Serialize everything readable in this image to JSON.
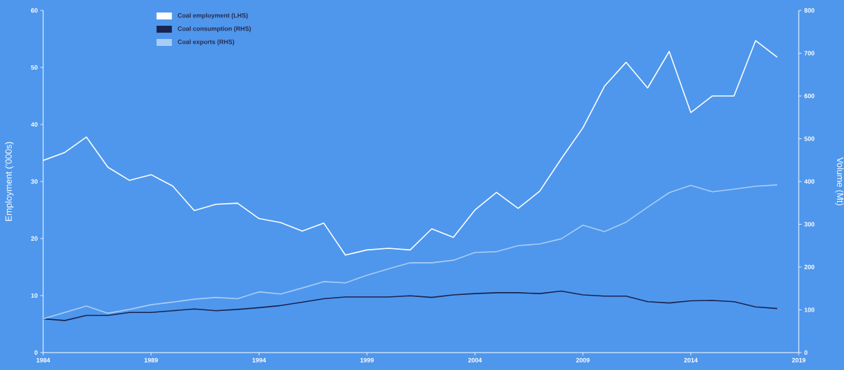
{
  "chart_data": {
    "type": "line",
    "x": [
      1984,
      1985,
      1986,
      1987,
      1988,
      1989,
      1990,
      1991,
      1992,
      1993,
      1994,
      1995,
      1996,
      1997,
      1998,
      1999,
      2000,
      2001,
      2002,
      2003,
      2004,
      2005,
      2006,
      2007,
      2008,
      2009,
      2010,
      2011,
      2012,
      2013,
      2014,
      2015,
      2016,
      2017,
      2018
    ],
    "series": [
      {
        "name": "Coal employment (LHS)",
        "color": "#ffffff",
        "axis": "y",
        "values": [
          33.7,
          35.1,
          37.8,
          32.5,
          30.2,
          31.2,
          29.2,
          24.9,
          26.0,
          26.2,
          23.5,
          22.8,
          21.3,
          22.7,
          17.1,
          18.0,
          18.3,
          18.0,
          21.7,
          20.2,
          25.0,
          28.1,
          25.3,
          28.3,
          34.0,
          39.4,
          46.7,
          50.9,
          46.4,
          52.8,
          42.1,
          45.0,
          45.0,
          54.7,
          51.8
        ]
      },
      {
        "name": "Coal consumption (RHS)",
        "color": "#1a2350",
        "axis": "y2",
        "values": [
          79,
          75,
          87,
          87,
          94,
          94,
          98,
          102,
          98,
          101,
          105,
          110,
          118,
          126,
          130,
          130,
          130,
          133,
          129,
          135,
          138,
          140,
          140,
          138,
          144,
          135,
          132,
          132,
          119,
          116,
          121,
          122,
          119,
          107,
          103
        ]
      },
      {
        "name": "Coal exports (RHS)",
        "color": "#a9cdf5",
        "axis": "y2",
        "values": [
          79,
          94,
          109,
          92,
          101,
          112,
          118,
          125,
          129,
          126,
          142,
          137,
          151,
          166,
          163,
          181,
          196,
          210,
          210,
          216,
          234,
          236,
          250,
          254,
          266,
          298,
          283,
          305,
          340,
          374,
          391,
          376,
          382,
          389,
          392
        ]
      }
    ],
    "ylabel": "Employment  (’000s)",
    "y2label": "Volume  (Mt)",
    "xlim": [
      1984,
      2019
    ],
    "xticks": [
      1984,
      1989,
      1994,
      1999,
      2004,
      2009,
      2014,
      2019
    ],
    "ylim": [
      0,
      60
    ],
    "yticks": [
      0,
      10,
      20,
      30,
      40,
      50,
      60
    ],
    "y2lim": [
      0,
      800
    ],
    "y2ticks": [
      0,
      100,
      200,
      300,
      400,
      500,
      600,
      700,
      800
    ],
    "legend": "top left",
    "grid": false,
    "marker": "none",
    "line_style": "solid"
  }
}
